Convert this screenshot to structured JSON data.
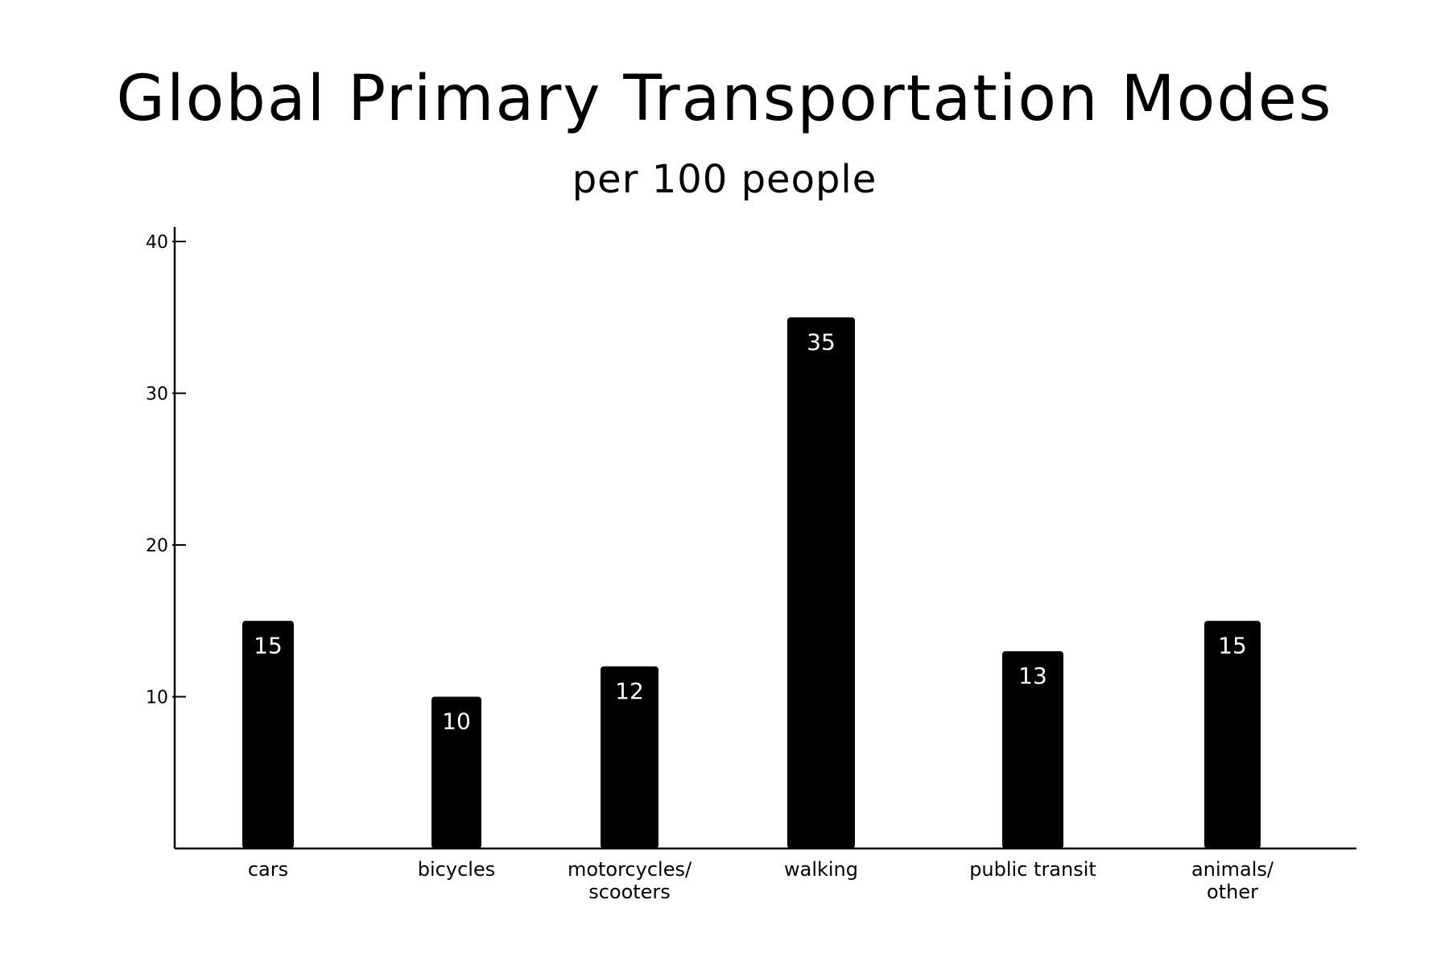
{
  "chart_data": {
    "type": "bar",
    "title": "Global Primary Transportation Modes",
    "subtitle": "per 100 people",
    "xlabel": "",
    "ylabel": "",
    "categories": [
      "cars",
      "bicycles",
      "motorcycles/ scooters",
      "walking",
      "public transit",
      "animals/ other"
    ],
    "category_lines": [
      [
        "cars"
      ],
      [
        "bicycles"
      ],
      [
        "motorcycles/",
        "scooters"
      ],
      [
        "walking"
      ],
      [
        "public transit"
      ],
      [
        "animals/",
        "other"
      ]
    ],
    "values": [
      15,
      10,
      12,
      35,
      13,
      15
    ],
    "data_labels": [
      "15",
      "10",
      "12",
      "35",
      "13",
      "15"
    ],
    "yticks": [
      10,
      20,
      30,
      40
    ],
    "ylim": [
      0,
      40
    ],
    "grid": false,
    "legend": "none",
    "bar_color": "#000000",
    "label_color": "#ffffff"
  }
}
